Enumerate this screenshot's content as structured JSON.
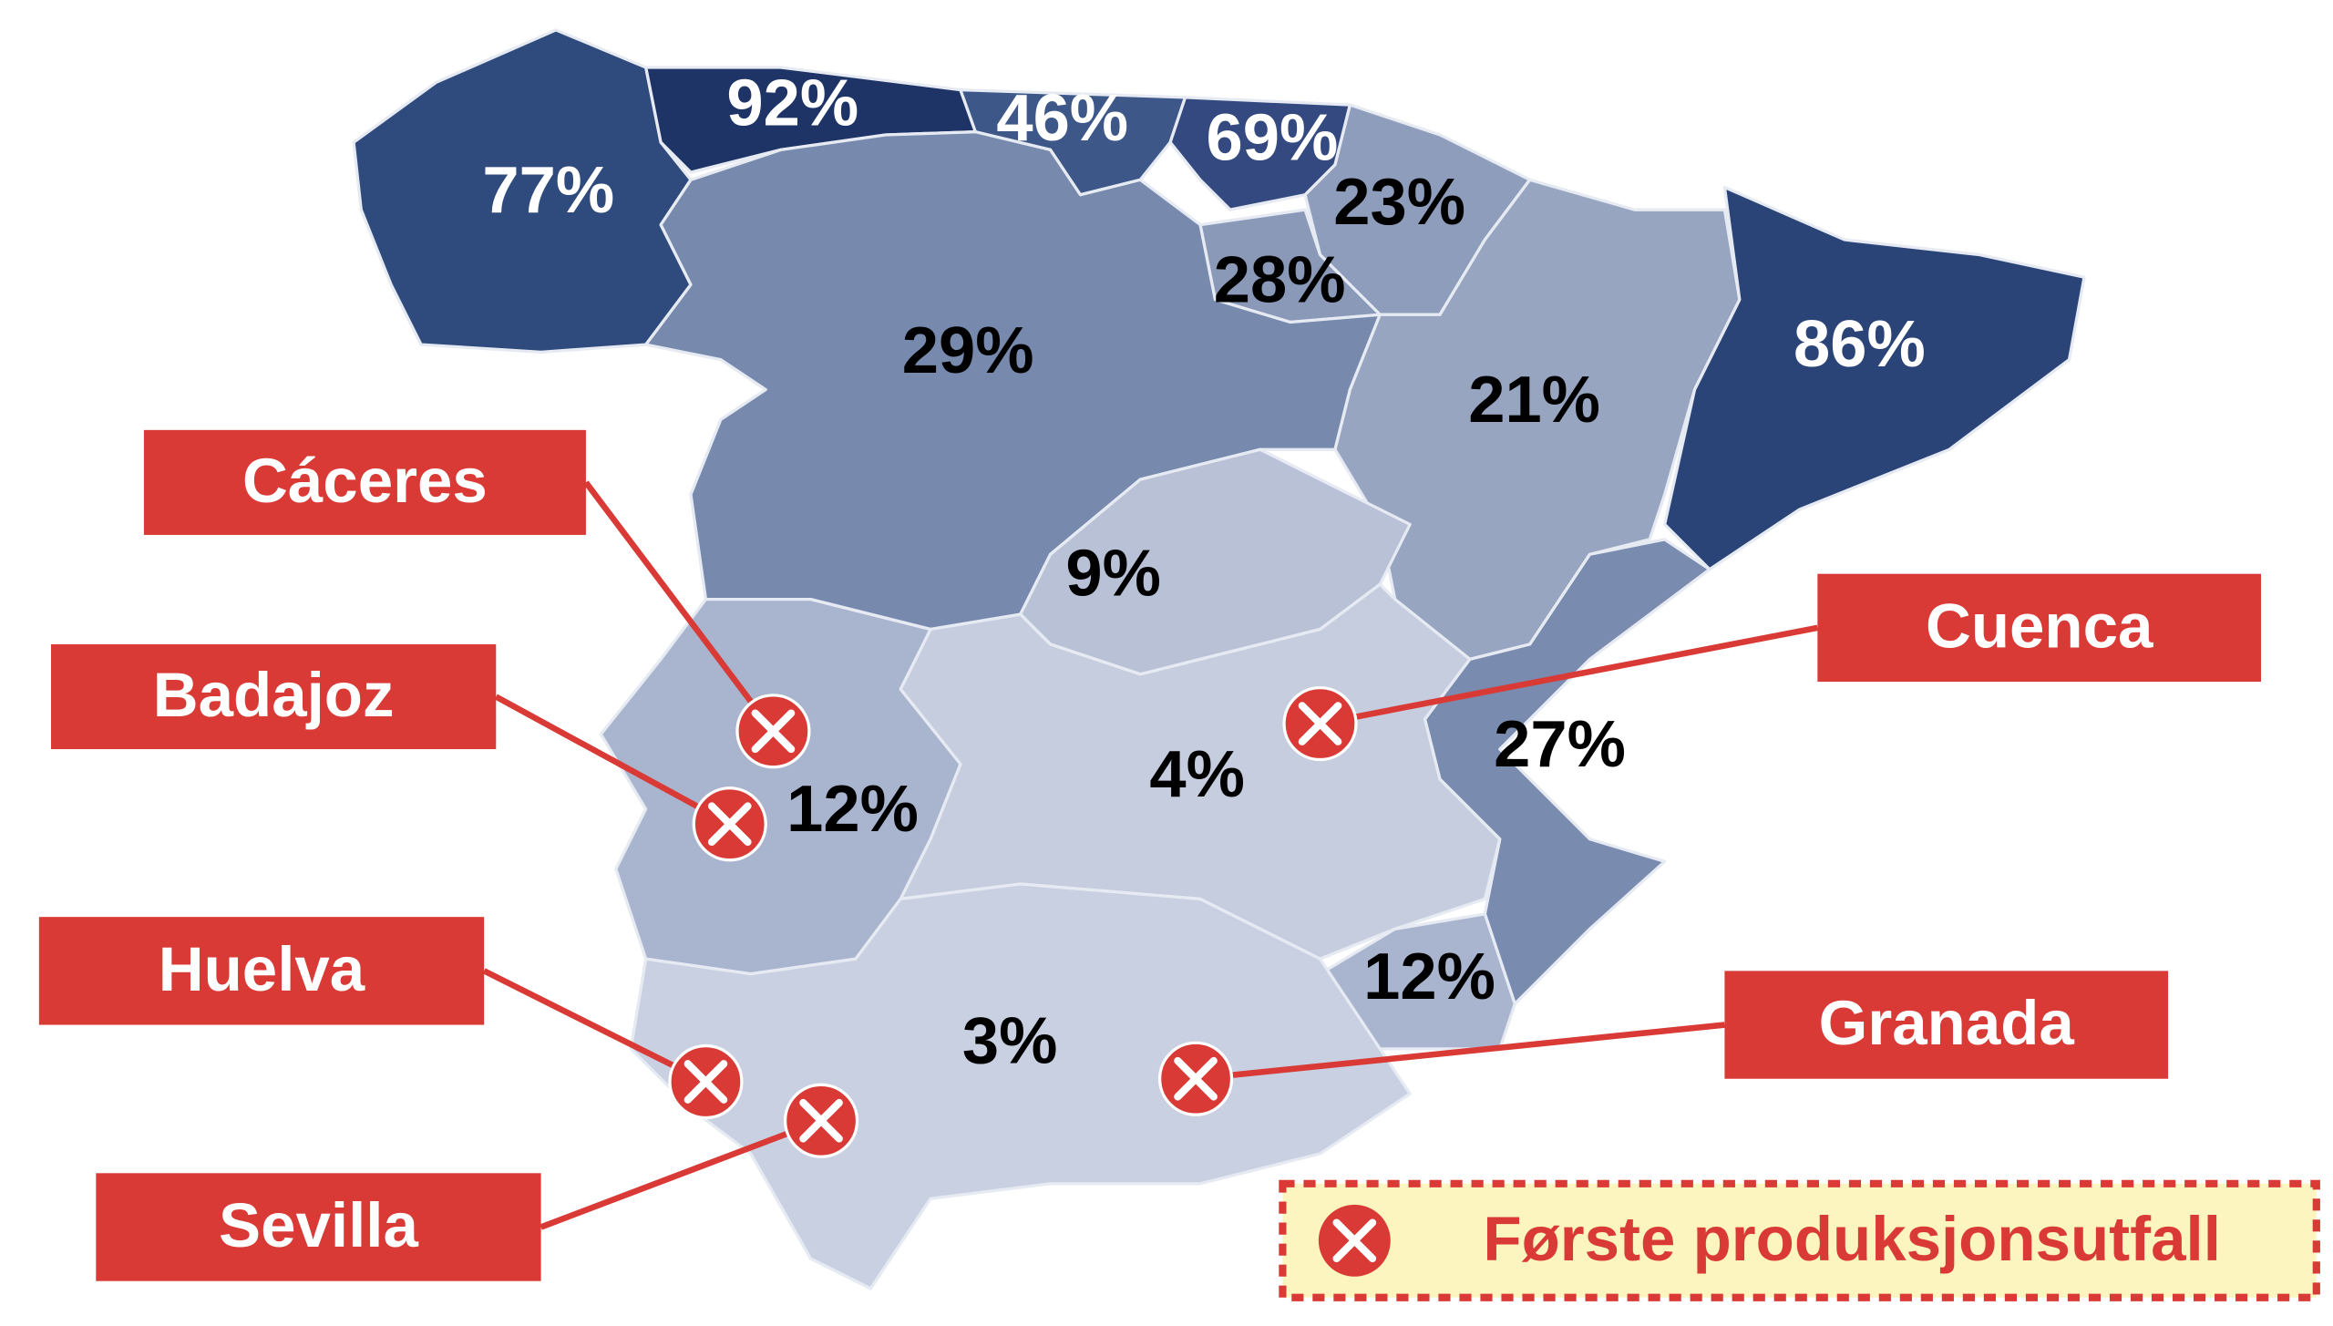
{
  "regions": [
    {
      "label": "77%"
    },
    {
      "label": "92%"
    },
    {
      "label": "46%"
    },
    {
      "label": "69%"
    },
    {
      "label": "23%"
    },
    {
      "label": "28%"
    },
    {
      "label": "29%"
    },
    {
      "label": "21%"
    },
    {
      "label": "86%"
    },
    {
      "label": "9%"
    },
    {
      "label": "4%"
    },
    {
      "label": "12%"
    },
    {
      "label": "27%"
    },
    {
      "label": "12%"
    },
    {
      "label": "3%"
    }
  ],
  "markers": [
    {
      "label": "Cáceres"
    },
    {
      "label": "Badajoz"
    },
    {
      "label": "Huelva"
    },
    {
      "label": "Sevilla"
    },
    {
      "label": "Cuenca"
    },
    {
      "label": "Granada"
    }
  ],
  "legend": {
    "label": "Første produksjonsutfall"
  }
}
